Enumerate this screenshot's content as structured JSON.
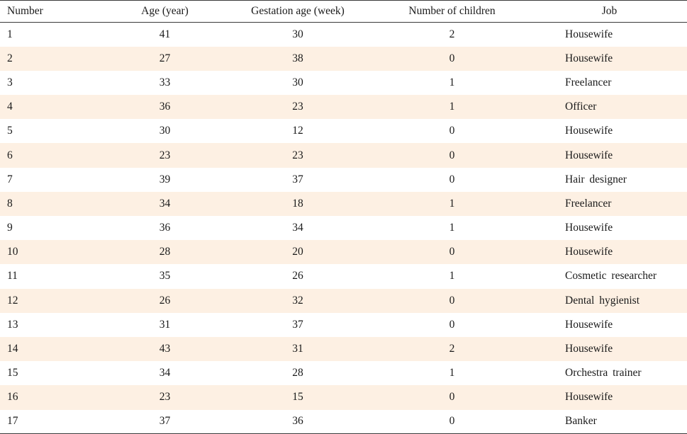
{
  "table": {
    "headers": {
      "number": "Number",
      "age": "Age (year)",
      "gestation": "Gestation age (week)",
      "children": "Number of children",
      "job": "Job"
    },
    "rows": [
      {
        "number": "1",
        "age": "41",
        "gestation": "30",
        "children": "2",
        "job": "Housewife"
      },
      {
        "number": "2",
        "age": "27",
        "gestation": "38",
        "children": "0",
        "job": "Housewife"
      },
      {
        "number": "3",
        "age": "33",
        "gestation": "30",
        "children": "1",
        "job": "Freelancer"
      },
      {
        "number": "4",
        "age": "36",
        "gestation": "23",
        "children": "1",
        "job": "Officer"
      },
      {
        "number": "5",
        "age": "30",
        "gestation": "12",
        "children": "0",
        "job": "Housewife"
      },
      {
        "number": "6",
        "age": "23",
        "gestation": "23",
        "children": "0",
        "job": "Housewife"
      },
      {
        "number": "7",
        "age": "39",
        "gestation": "37",
        "children": "0",
        "job": "Hair designer"
      },
      {
        "number": "8",
        "age": "34",
        "gestation": "18",
        "children": "1",
        "job": "Freelancer"
      },
      {
        "number": "9",
        "age": "36",
        "gestation": "34",
        "children": "1",
        "job": "Housewife"
      },
      {
        "number": "10",
        "age": "28",
        "gestation": "20",
        "children": "0",
        "job": "Housewife"
      },
      {
        "number": "11",
        "age": "35",
        "gestation": "26",
        "children": "1",
        "job": "Cosmetic researcher"
      },
      {
        "number": "12",
        "age": "26",
        "gestation": "32",
        "children": "0",
        "job": "Dental hygienist"
      },
      {
        "number": "13",
        "age": "31",
        "gestation": "37",
        "children": "0",
        "job": "Housewife"
      },
      {
        "number": "14",
        "age": "43",
        "gestation": "31",
        "children": "2",
        "job": "Housewife"
      },
      {
        "number": "15",
        "age": "34",
        "gestation": "28",
        "children": "1",
        "job": "Orchestra trainer"
      },
      {
        "number": "16",
        "age": "23",
        "gestation": "15",
        "children": "0",
        "job": "Housewife"
      },
      {
        "number": "17",
        "age": "37",
        "gestation": "36",
        "children": "0",
        "job": "Banker"
      }
    ]
  },
  "colors": {
    "stripe": "#fdf0e3",
    "rule": "#3a3a3a"
  }
}
